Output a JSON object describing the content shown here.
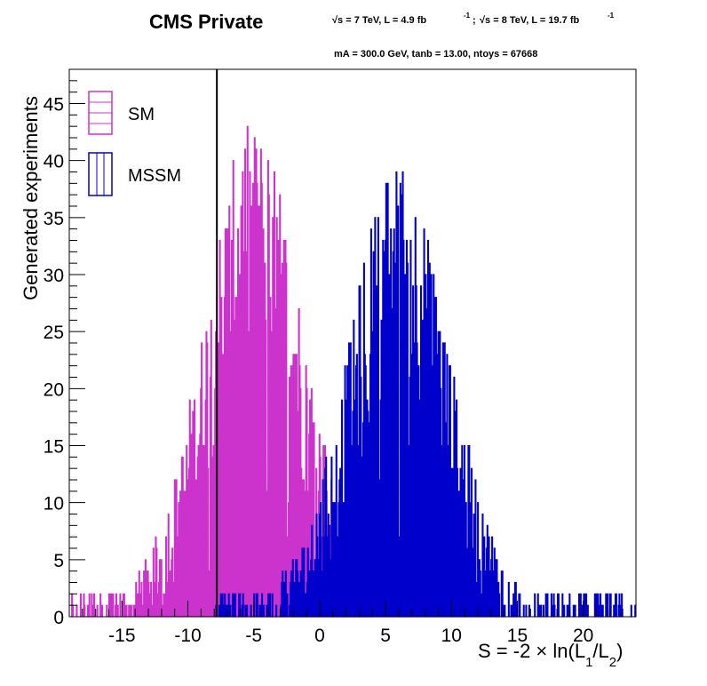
{
  "header": {
    "title": "CMS Private",
    "energy_line_7": "√s = 7 TeV, L = 4.9 fb",
    "energy_sup_7": "-1",
    "energy_sep": ";",
    "energy_line_8": "√s = 8 TeV, L = 19.7 fb",
    "energy_sup_8": "-1",
    "params_line": "mA = 300.0 GeV,  tanb = 13.00,   ntoys = 67668"
  },
  "chart_data": {
    "type": "histogram",
    "title": "CMS Private",
    "xlabel": "S = -2 × ln(L1/L2)",
    "xlabel_parts": {
      "main": "S = -2 × ln(L",
      "sub1": "1",
      "slash": "/L",
      "sub2": "2",
      "close": ")"
    },
    "ylabel": "Generated experiments",
    "xlim": [
      -19,
      24
    ],
    "ylim": [
      0,
      48
    ],
    "x_ticks": [
      -15,
      -10,
      -5,
      0,
      5,
      10,
      15,
      20
    ],
    "y_ticks": [
      0,
      5,
      10,
      15,
      20,
      25,
      30,
      35,
      40,
      45
    ],
    "observed_line_x": -7.8,
    "grid": false,
    "legend_position": "top-left",
    "series": [
      {
        "name": "SM",
        "color": "#cc33cc",
        "distribution": "gaussian-like",
        "mean": -5.0,
        "sigma": 3.5,
        "peak": 46,
        "range": [
          -19,
          7
        ]
      },
      {
        "name": "MSSM",
        "color": "#0000cc",
        "distribution": "gaussian-like",
        "mean": 6.0,
        "sigma": 3.5,
        "peak": 42,
        "range": [
          -8,
          24
        ]
      }
    ]
  }
}
